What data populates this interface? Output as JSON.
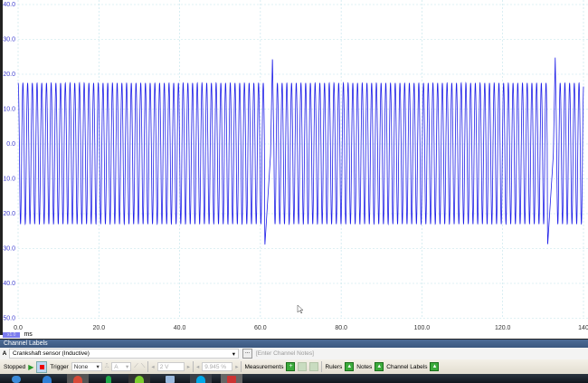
{
  "chart_data": {
    "type": "line",
    "x_unit": "ms",
    "xlim": [
      0,
      140
    ],
    "ylim": [
      -50,
      40
    ],
    "x_ticks": [
      "0.0",
      "20.0",
      "40.0",
      "60.0",
      "80.0",
      "100.0",
      "120.0",
      "140"
    ],
    "y_ticks": [
      "40.0",
      "30.0",
      "20.0",
      "10.0",
      "0.0",
      "-10.0",
      "-20.0",
      "-30.0",
      "-40.0",
      "-50.0"
    ],
    "grid": true,
    "series_color": "#2020e8",
    "tooth_period_ms": 1.167,
    "tooth_peak": 17.5,
    "tooth_trough": -23,
    "gap_trough": -29,
    "gap_peak": 25,
    "gap_times_ms": [
      61.0,
      131.0
    ]
  },
  "scope": {
    "zoom_label": "x1.0",
    "unit": "ms"
  },
  "channel_labels": {
    "title": "Channel Labels",
    "channel": "A",
    "label": "Crankshaft sensor (Inductive)",
    "more": "...",
    "notes_placeholder": "[Enter Channel Notes]"
  },
  "toolbar": {
    "status": "Stopped",
    "trigger_label": "Trigger",
    "trigger_mode": "None",
    "trigger_channel": "A",
    "threshold": "2 V",
    "pretrigger": "9.945 %",
    "measurements": "Measurements",
    "rulers": "Rulers",
    "notes": "Notes",
    "channel_labels": "Channel Labels"
  },
  "taskbar": {
    "icons": [
      "windows-start",
      "internet-explorer",
      "chrome",
      "app-green",
      "picoscope",
      "explorer",
      "skype",
      "app-monitor"
    ]
  }
}
